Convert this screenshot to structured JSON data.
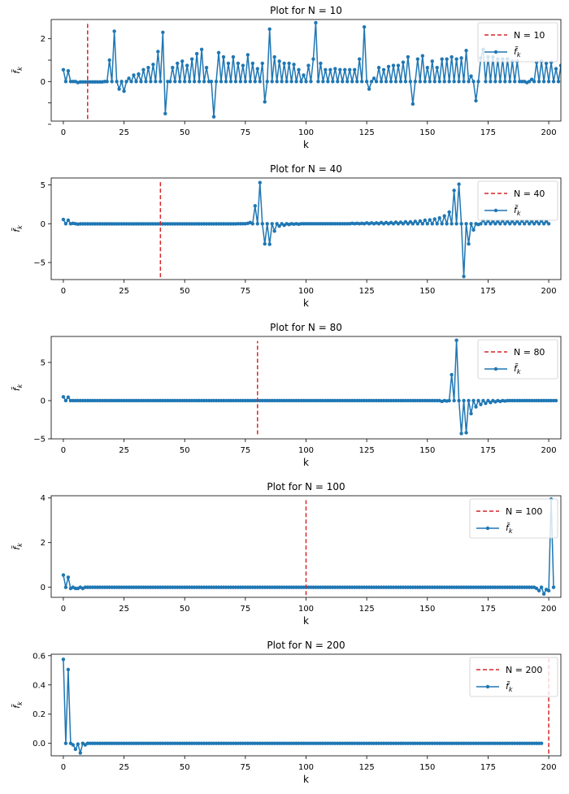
{
  "colors": {
    "series": "#1f77b4",
    "marker_line": "#d62728",
    "axes": "#000000",
    "legend_border": "#cccccc"
  },
  "chart_data": [
    {
      "type": "line",
      "title": "Plot for N = 10",
      "xlabel": "k",
      "ylabel": "f̃",
      "ylabel_sub": "k",
      "xlim": [
        -5,
        205
      ],
      "ylim": [
        -1.85,
        2.9
      ],
      "xticks": [
        0,
        25,
        50,
        75,
        100,
        125,
        150,
        175,
        200
      ],
      "yticks": [
        -2,
        -1,
        0,
        1,
        2
      ],
      "yticklabels": [
        "",
        "",
        "0",
        "",
        "2"
      ],
      "N": 10,
      "vline_range": [
        -1.75,
        2.75
      ],
      "legend": {
        "placement": "upper-right",
        "items": [
          "N = 10",
          "f̃"
        ],
        "item_sub": "k"
      },
      "x_step": 1,
      "x_count": 200,
      "y": [
        0.55,
        0.0,
        0.5,
        0.0,
        0.0,
        0.0,
        -0.05,
        -0.02,
        -0.02,
        -0.02,
        -0.02,
        -0.02,
        -0.02,
        -0.02,
        -0.02,
        -0.02,
        -0.02,
        0.0,
        0.0,
        1.0,
        0.0,
        2.35,
        0.0,
        -0.35,
        0.0,
        -0.45,
        0.0,
        0.15,
        0.0,
        0.3,
        0.0,
        0.35,
        0.0,
        0.55,
        0.0,
        0.65,
        0.0,
        0.8,
        0.0,
        1.4,
        0.0,
        2.3,
        -1.5,
        0.0,
        0.0,
        0.65,
        0.0,
        0.85,
        0.0,
        0.95,
        0.0,
        0.75,
        0.0,
        1.05,
        0.0,
        1.3,
        0.0,
        1.5,
        0.0,
        0.65,
        0.0,
        0.0,
        -1.65,
        0.0,
        1.35,
        0.0,
        1.15,
        0.0,
        0.85,
        0.0,
        1.15,
        0.0,
        0.85,
        0.0,
        0.75,
        0.0,
        1.25,
        0.0,
        0.85,
        0.0,
        0.6,
        0.0,
        0.85,
        -0.95,
        0.0,
        2.45,
        0.0,
        1.15,
        0.0,
        0.95,
        0.0,
        0.85,
        0.0,
        0.85,
        0.0,
        0.8,
        0.0,
        0.55,
        0.0,
        0.3,
        0.0,
        0.75,
        0.0,
        1.05,
        2.75,
        0.0,
        0.85,
        0.0,
        0.55,
        0.0,
        0.55,
        0.0,
        0.6,
        0.0,
        0.55,
        0.0,
        0.55,
        0.0,
        0.55,
        0.0,
        0.55,
        0.0,
        1.05,
        0.0,
        2.55,
        0.0,
        -0.35,
        0.0,
        0.15,
        0.0,
        0.65,
        0.0,
        0.55,
        0.0,
        0.7,
        0.0,
        0.75,
        0.0,
        0.75,
        0.0,
        0.9,
        0.0,
        1.15,
        0.0,
        -1.05,
        0.0,
        1.05,
        0.0,
        1.2,
        0.0,
        0.65,
        0.0,
        0.95,
        0.0,
        0.65,
        0.0,
        1.05,
        0.0,
        1.05,
        0.0,
        1.15,
        0.0,
        1.05,
        0.0,
        1.1,
        0.0,
        1.45,
        0.0,
        0.25,
        0.0,
        -0.9,
        0.0,
        1.1,
        1.5,
        0.0,
        1.15,
        0.0,
        1.15,
        0.0,
        1.05,
        0.0,
        1.05,
        0.0,
        1.05,
        0.0,
        0.95,
        0.0,
        0.95,
        0.0,
        0.0,
        0.0,
        -0.05,
        0.0,
        0.1,
        0.0,
        0.9,
        0.0,
        0.95,
        0.0,
        0.85,
        0.0,
        0.9,
        0.0,
        0.6,
        0.0,
        0.75,
        0.0
      ]
    },
    {
      "type": "line",
      "title": "Plot for N = 40",
      "xlabel": "k",
      "ylabel": "f̃",
      "ylabel_sub": "k",
      "xlim": [
        -5,
        205
      ],
      "ylim": [
        -7.2,
        5.9
      ],
      "xticks": [
        0,
        25,
        50,
        75,
        100,
        125,
        150,
        175,
        200
      ],
      "yticks": [
        -5,
        0,
        5
      ],
      "yticklabels": [
        "−5",
        "0",
        "5"
      ],
      "N": 40,
      "vline_range": [
        -6.9,
        5.4
      ],
      "legend": {
        "placement": "upper-right",
        "items": [
          "N = 40",
          "f̃"
        ],
        "item_sub": "k"
      },
      "x_step": 1,
      "x_count": 200,
      "y": [
        0.55,
        0.0,
        0.45,
        0.0,
        0.05,
        0.0,
        -0.05,
        -0.02,
        -0.02,
        -0.02,
        -0.02,
        -0.02,
        -0.02,
        -0.02,
        -0.02,
        -0.02,
        -0.02,
        -0.02,
        -0.02,
        -0.02,
        -0.02,
        -0.02,
        -0.02,
        -0.02,
        -0.02,
        -0.02,
        -0.02,
        -0.02,
        -0.02,
        -0.02,
        -0.02,
        -0.02,
        -0.02,
        -0.02,
        -0.02,
        -0.02,
        -0.02,
        -0.02,
        -0.02,
        -0.02,
        -0.02,
        -0.02,
        -0.02,
        -0.02,
        -0.02,
        -0.02,
        -0.02,
        -0.02,
        -0.02,
        -0.02,
        -0.02,
        -0.02,
        -0.02,
        -0.02,
        -0.02,
        -0.02,
        -0.02,
        -0.02,
        -0.02,
        -0.02,
        -0.02,
        -0.02,
        -0.02,
        -0.02,
        -0.02,
        -0.02,
        -0.02,
        -0.02,
        -0.02,
        -0.02,
        -0.02,
        -0.02,
        0.0,
        0.0,
        0.0,
        0.0,
        0.05,
        0.15,
        0.0,
        2.3,
        0.0,
        5.3,
        0.0,
        -2.6,
        0.0,
        -2.65,
        0.0,
        -0.95,
        0.0,
        -0.3,
        0.0,
        -0.2,
        0.0,
        -0.1,
        0.0,
        -0.05,
        0.0,
        -0.05,
        0.0,
        0.0,
        0.0,
        0.0,
        0.0,
        0.0,
        0.0,
        0.0,
        0.0,
        0.0,
        0.0,
        0.0,
        0.0,
        0.0,
        0.0,
        0.0,
        0.0,
        0.0,
        0.0,
        0.0,
        0.0,
        0.05,
        0.0,
        0.05,
        0.0,
        0.05,
        0.0,
        0.1,
        0.0,
        0.1,
        0.0,
        0.1,
        0.0,
        0.15,
        0.0,
        0.15,
        0.0,
        0.15,
        0.0,
        0.2,
        0.0,
        0.2,
        0.0,
        0.25,
        0.0,
        0.25,
        0.0,
        0.3,
        0.0,
        0.35,
        0.0,
        0.45,
        0.0,
        0.5,
        0.0,
        0.6,
        0.0,
        0.75,
        0.0,
        1.0,
        0.0,
        1.5,
        0.0,
        4.3,
        0.0,
        5.1,
        0.0,
        -6.8,
        0.0,
        -2.6,
        0.0,
        -0.8,
        0.0,
        -0.1,
        0.0,
        0.4,
        0.0,
        0.35,
        0.0,
        0.3,
        0.0,
        0.3,
        0.0,
        0.35,
        0.0,
        0.3,
        0.0,
        0.3,
        0.0,
        0.3,
        0.0,
        0.35,
        0.0,
        0.35,
        0.0,
        0.3,
        0.0,
        0.3,
        0.0,
        0.35,
        0.0,
        0.3,
        0.0
      ]
    },
    {
      "type": "line",
      "title": "Plot for N = 80",
      "xlabel": "k",
      "ylabel": "f̃",
      "ylabel_sub": "k",
      "xlim": [
        -5,
        205
      ],
      "ylim": [
        -5.0,
        8.4
      ],
      "xticks": [
        0,
        25,
        50,
        75,
        100,
        125,
        150,
        175,
        200
      ],
      "yticks": [
        -5,
        0,
        5
      ],
      "yticklabels": [
        "−5",
        "0",
        "5"
      ],
      "N": 80,
      "vline_range": [
        -4.4,
        7.8
      ],
      "legend": {
        "placement": "upper-right",
        "items": [
          "N = 80",
          "f̃"
        ],
        "item_sub": "k"
      },
      "x_step": 1,
      "x_count": 200,
      "y": [
        0.5,
        0.0,
        0.45,
        0.0,
        0.0,
        0.0,
        0.0,
        0.0,
        0.0,
        0.0,
        0.0,
        0.0,
        0.0,
        0.0,
        0.0,
        0.0,
        0.0,
        0.0,
        0.0,
        0.0,
        0.0,
        0.0,
        0.0,
        0.0,
        0.0,
        0.0,
        0.0,
        0.0,
        0.0,
        0.0,
        0.0,
        0.0,
        0.0,
        0.0,
        0.0,
        0.0,
        0.0,
        0.0,
        0.0,
        0.0,
        0.0,
        0.0,
        0.0,
        0.0,
        0.0,
        0.0,
        0.0,
        0.0,
        0.0,
        0.0,
        0.0,
        0.0,
        0.0,
        0.0,
        0.0,
        0.0,
        0.0,
        0.0,
        0.0,
        0.0,
        0.0,
        0.0,
        0.0,
        0.0,
        0.0,
        0.0,
        0.0,
        0.0,
        0.0,
        0.0,
        0.0,
        0.0,
        0.0,
        0.0,
        0.0,
        0.0,
        0.0,
        0.0,
        0.0,
        0.0,
        0.0,
        0.0,
        0.0,
        0.0,
        0.0,
        0.0,
        0.0,
        0.0,
        0.0,
        0.0,
        0.0,
        0.0,
        0.0,
        0.0,
        0.0,
        0.0,
        0.0,
        0.0,
        0.0,
        0.0,
        0.0,
        0.0,
        0.0,
        0.0,
        0.0,
        0.0,
        0.0,
        0.0,
        0.0,
        0.0,
        0.0,
        0.0,
        0.0,
        0.0,
        0.0,
        0.0,
        0.0,
        0.0,
        0.0,
        0.0,
        0.0,
        0.0,
        0.0,
        0.0,
        0.0,
        0.0,
        0.0,
        0.0,
        0.0,
        0.0,
        0.0,
        0.0,
        0.0,
        0.0,
        0.0,
        0.0,
        0.0,
        0.0,
        0.0,
        0.0,
        0.0,
        0.0,
        0.0,
        0.0,
        0.0,
        0.0,
        0.0,
        0.0,
        0.0,
        0.0,
        0.0,
        0.0,
        0.0,
        0.0,
        0.0,
        0.0,
        -0.1,
        0.0,
        -0.05,
        0.0,
        3.4,
        0.0,
        7.9,
        0.0,
        -4.3,
        0.0,
        -4.2,
        0.0,
        -1.7,
        0.0,
        -0.8,
        0.0,
        -0.5,
        0.0,
        -0.35,
        0.0,
        -0.25,
        0.0,
        -0.15,
        0.0,
        -0.1,
        0.0,
        -0.05,
        0.0,
        0.0,
        0.0,
        0.0,
        0.0,
        0.0,
        0.0,
        0.0,
        0.0,
        0.0,
        0.0,
        0.0,
        0.0,
        0.0,
        0.0,
        0.0,
        0.0,
        0.0,
        0.0,
        0.0,
        0.0
      ]
    },
    {
      "type": "line",
      "title": "Plot for N = 100",
      "xlabel": "k",
      "ylabel": "f̃",
      "ylabel_sub": "k",
      "xlim": [
        -5,
        205
      ],
      "ylim": [
        -0.45,
        4.1
      ],
      "xticks": [
        0,
        25,
        50,
        75,
        100,
        125,
        150,
        175,
        200
      ],
      "yticks": [
        0,
        2,
        4
      ],
      "yticklabels": [
        "0",
        "2",
        "4"
      ],
      "N": 100,
      "vline_range": [
        -0.35,
        3.9
      ],
      "legend": {
        "placement": "upper-right",
        "items": [
          "N = 100",
          "f̃"
        ],
        "item_sub": "k"
      },
      "x_step": 1,
      "x_count": 200,
      "y": [
        0.55,
        0.0,
        0.45,
        -0.05,
        0.0,
        -0.05,
        -0.05,
        0.0,
        -0.05,
        0.0,
        0.0,
        0.0,
        0.0,
        0.0,
        0.0,
        0.0,
        0.0,
        0.0,
        0.0,
        0.0,
        0.0,
        0.0,
        0.0,
        0.0,
        0.0,
        0.0,
        0.0,
        0.0,
        0.0,
        0.0,
        0.0,
        0.0,
        0.0,
        0.0,
        0.0,
        0.0,
        0.0,
        0.0,
        0.0,
        0.0,
        0.0,
        0.0,
        0.0,
        0.0,
        0.0,
        0.0,
        0.0,
        0.0,
        0.0,
        0.0,
        0.0,
        0.0,
        0.0,
        0.0,
        0.0,
        0.0,
        0.0,
        0.0,
        0.0,
        0.0,
        0.0,
        0.0,
        0.0,
        0.0,
        0.0,
        0.0,
        0.0,
        0.0,
        0.0,
        0.0,
        0.0,
        0.0,
        0.0,
        0.0,
        0.0,
        0.0,
        0.0,
        0.0,
        0.0,
        0.0,
        0.0,
        0.0,
        0.0,
        0.0,
        0.0,
        0.0,
        0.0,
        0.0,
        0.0,
        0.0,
        0.0,
        0.0,
        0.0,
        0.0,
        0.0,
        0.0,
        0.0,
        0.0,
        0.0,
        0.0,
        0.0,
        0.0,
        0.0,
        0.0,
        0.0,
        0.0,
        0.0,
        0.0,
        0.0,
        0.0,
        0.0,
        0.0,
        0.0,
        0.0,
        0.0,
        0.0,
        0.0,
        0.0,
        0.0,
        0.0,
        0.0,
        0.0,
        0.0,
        0.0,
        0.0,
        0.0,
        0.0,
        0.0,
        0.0,
        0.0,
        0.0,
        0.0,
        0.0,
        0.0,
        0.0,
        0.0,
        0.0,
        0.0,
        0.0,
        0.0,
        0.0,
        0.0,
        0.0,
        0.0,
        0.0,
        0.0,
        0.0,
        0.0,
        0.0,
        0.0,
        0.0,
        0.0,
        0.0,
        0.0,
        0.0,
        0.0,
        0.0,
        0.0,
        0.0,
        0.0,
        0.0,
        0.0,
        0.0,
        0.0,
        0.0,
        0.0,
        0.0,
        0.0,
        0.0,
        0.0,
        0.0,
        0.0,
        0.0,
        0.0,
        0.0,
        0.0,
        0.0,
        0.0,
        0.0,
        0.0,
        0.0,
        0.0,
        0.0,
        0.0,
        0.0,
        0.0,
        0.0,
        0.0,
        0.0,
        0.0,
        0.0,
        0.0,
        0.0,
        0.0,
        0.0,
        -0.05,
        -0.15,
        0.0,
        -0.3,
        -0.1,
        -0.15,
        3.95,
        0.0
      ]
    },
    {
      "type": "line",
      "title": "Plot for N = 200",
      "xlabel": "k",
      "ylabel": "f̃",
      "ylabel_sub": "k",
      "xlim": [
        -5,
        205
      ],
      "ylim": [
        -0.085,
        0.61
      ],
      "xticks": [
        0,
        25,
        50,
        75,
        100,
        125,
        150,
        175,
        200
      ],
      "yticks": [
        0.0,
        0.2,
        0.4,
        0.6
      ],
      "yticklabels": [
        "0.0",
        "0.2",
        "0.4",
        "0.6"
      ],
      "N": 200,
      "vline_range": [
        -0.07,
        0.58
      ],
      "legend": {
        "placement": "upper-right",
        "items": [
          "N = 200",
          "f̃"
        ],
        "item_sub": "k"
      },
      "x_step": 1,
      "x_count": 200,
      "y": [
        0.575,
        0.0,
        0.505,
        0.0,
        -0.01,
        -0.04,
        -0.005,
        -0.065,
        0.0,
        -0.01,
        0.0,
        0.0,
        0.0,
        0.0,
        0.0,
        0.0,
        0.0,
        0.0,
        0.0,
        0.0,
        0.0,
        0.0,
        0.0,
        0.0,
        0.0,
        0.0,
        0.0,
        0.0,
        0.0,
        0.0,
        0.0,
        0.0,
        0.0,
        0.0,
        0.0,
        0.0,
        0.0,
        0.0,
        0.0,
        0.0,
        0.0,
        0.0,
        0.0,
        0.0,
        0.0,
        0.0,
        0.0,
        0.0,
        0.0,
        0.0,
        0.0,
        0.0,
        0.0,
        0.0,
        0.0,
        0.0,
        0.0,
        0.0,
        0.0,
        0.0,
        0.0,
        0.0,
        0.0,
        0.0,
        0.0,
        0.0,
        0.0,
        0.0,
        0.0,
        0.0,
        0.0,
        0.0,
        0.0,
        0.0,
        0.0,
        0.0,
        0.0,
        0.0,
        0.0,
        0.0,
        0.0,
        0.0,
        0.0,
        0.0,
        0.0,
        0.0,
        0.0,
        0.0,
        0.0,
        0.0,
        0.0,
        0.0,
        0.0,
        0.0,
        0.0,
        0.0,
        0.0,
        0.0,
        0.0,
        0.0,
        0.0,
        0.0,
        0.0,
        0.0,
        0.0,
        0.0,
        0.0,
        0.0,
        0.0,
        0.0,
        0.0,
        0.0,
        0.0,
        0.0,
        0.0,
        0.0,
        0.0,
        0.0,
        0.0,
        0.0,
        0.0,
        0.0,
        0.0,
        0.0,
        0.0,
        0.0,
        0.0,
        0.0,
        0.0,
        0.0,
        0.0,
        0.0,
        0.0,
        0.0,
        0.0,
        0.0,
        0.0,
        0.0,
        0.0,
        0.0,
        0.0,
        0.0,
        0.0,
        0.0,
        0.0,
        0.0,
        0.0,
        0.0,
        0.0,
        0.0,
        0.0,
        0.0,
        0.0,
        0.0,
        0.0,
        0.0,
        0.0,
        0.0,
        0.0,
        0.0,
        0.0,
        0.0,
        0.0,
        0.0,
        0.0,
        0.0,
        0.0,
        0.0,
        0.0,
        0.0,
        0.0,
        0.0,
        0.0,
        0.0,
        0.0,
        0.0,
        0.0,
        0.0,
        0.0,
        0.0,
        0.0,
        0.0,
        0.0,
        0.0,
        0.0,
        0.0,
        0.0,
        0.0,
        0.0,
        0.0,
        0.0,
        0.0,
        0.0,
        0.0,
        0.0,
        0.0,
        0.0,
        0.0
      ]
    }
  ]
}
